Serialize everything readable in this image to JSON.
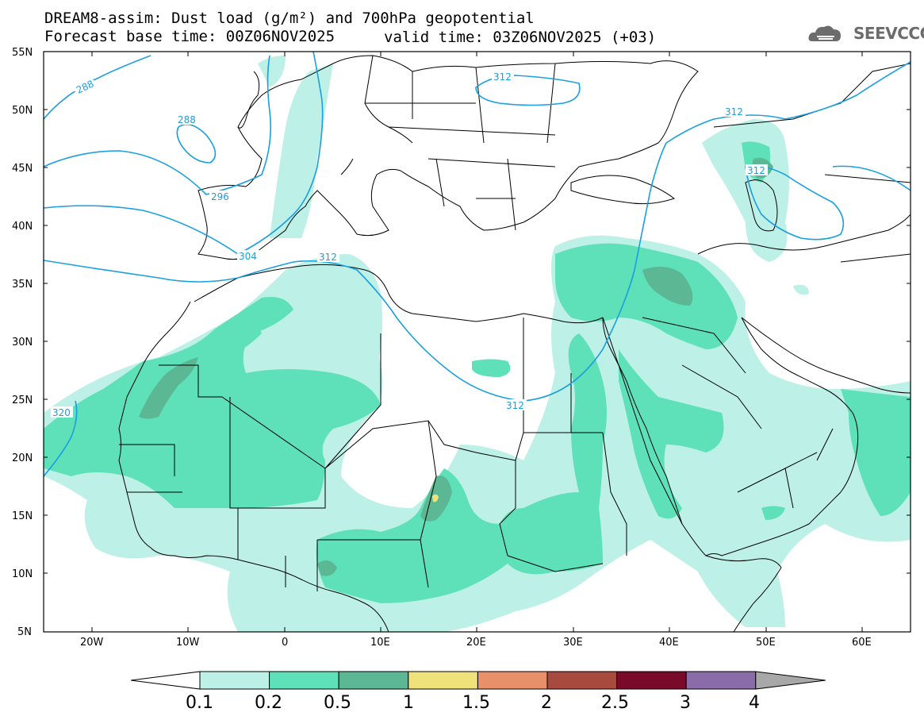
{
  "header": {
    "title_line1": "DREAM8-assim: Dust load (g/m²) and 700hPa geopotential",
    "title_line2": "Forecast base time: 00Z06NOV2025",
    "valid_time": "valid time: 03Z06NOV2025 (+03)",
    "logo_text": "SEEVCCC"
  },
  "axes": {
    "lat_labels": [
      "55N",
      "50N",
      "45N",
      "40N",
      "35N",
      "30N",
      "25N",
      "20N",
      "15N",
      "10N",
      "5N"
    ],
    "lon_labels": [
      "20W",
      "10W",
      "0",
      "10E",
      "20E",
      "30E",
      "40E",
      "50E",
      "60E"
    ]
  },
  "contour_labels": [
    "288",
    "288",
    "296",
    "304",
    "312",
    "312",
    "312",
    "312",
    "312",
    "320"
  ],
  "colorbar": {
    "labels": [
      "0.1",
      "0.2",
      "0.5",
      "1",
      "1.5",
      "2",
      "2.5",
      "3",
      "4"
    ],
    "colors": [
      "#ffffff",
      "#bdf0e6",
      "#5ee0b8",
      "#5cb894",
      "#f0e27a",
      "#e8906a",
      "#a84a3e",
      "#7a0a2a",
      "#8a6ca8",
      "#a8a8a8"
    ]
  },
  "dust_colors": {
    "level_01": "#bdf0e6",
    "level_02": "#5ee0b8",
    "level_05": "#5cb894",
    "level_10": "#f0e27a"
  },
  "contour_color": "#1a9fe0"
}
